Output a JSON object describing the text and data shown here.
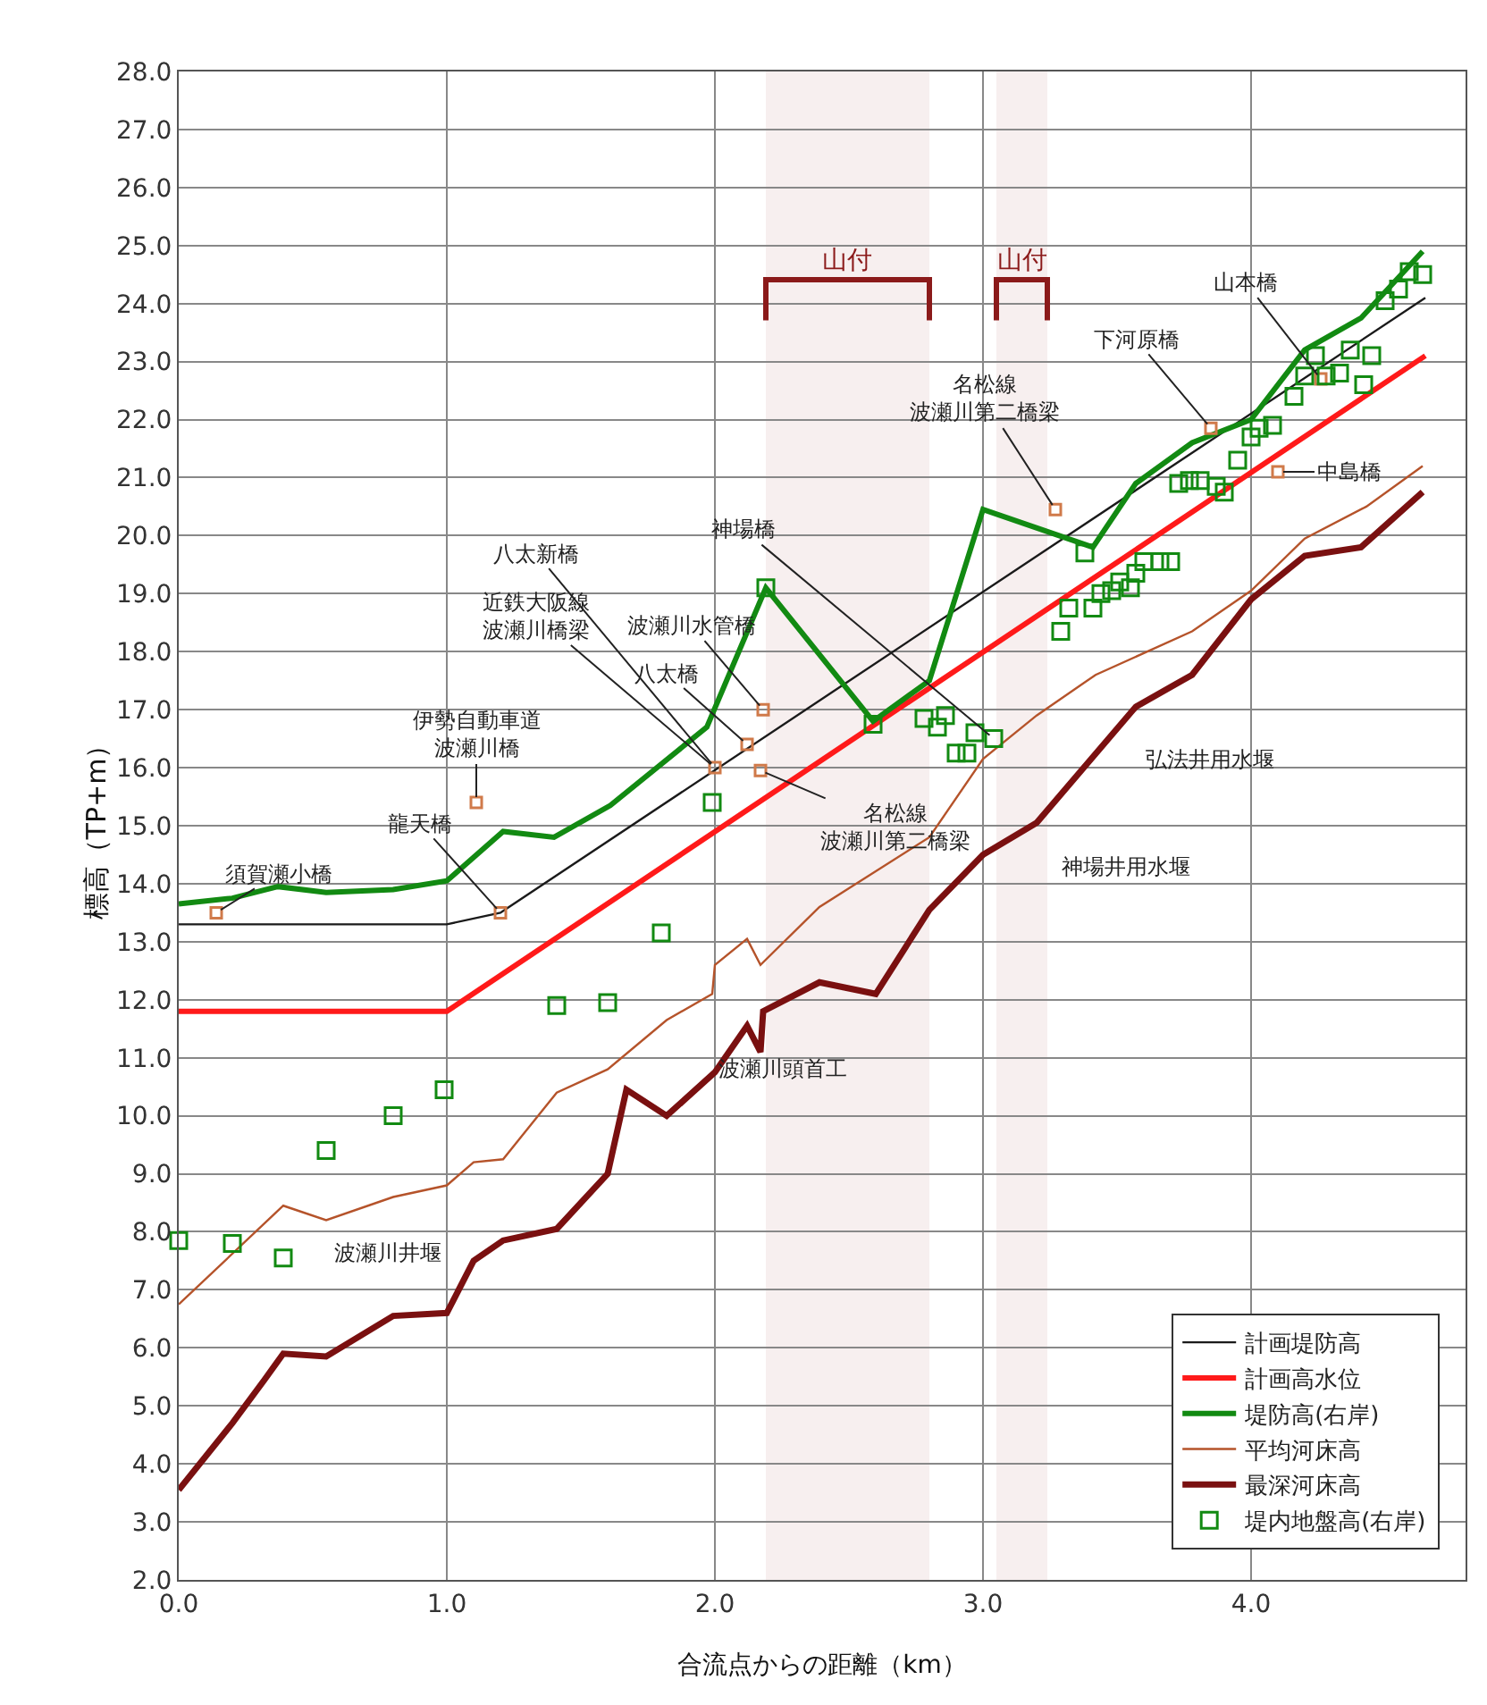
{
  "chart_data": {
    "type": "line",
    "xlabel": "合流点からの距離（km）",
    "ylabel": "標高（TP+m）",
    "xlim": [
      0,
      4.8
    ],
    "xticks": [
      {
        "value": 0,
        "label": "0.0"
      },
      {
        "value": 1,
        "label": "1.0"
      },
      {
        "value": 2,
        "label": "2.0"
      },
      {
        "value": 3,
        "label": "3.0"
      },
      {
        "value": 4,
        "label": "4.0"
      }
    ],
    "ylim": [
      2,
      28
    ],
    "yticks": [
      {
        "value": 2,
        "label": "2.0"
      },
      {
        "value": 3,
        "label": "3.0"
      },
      {
        "value": 4,
        "label": "4.0"
      },
      {
        "value": 5,
        "label": "5.0"
      },
      {
        "value": 6,
        "label": "6.0"
      },
      {
        "value": 7,
        "label": "7.0"
      },
      {
        "value": 8,
        "label": "8.0"
      },
      {
        "value": 9,
        "label": "9.0"
      },
      {
        "value": 10,
        "label": "10.0"
      },
      {
        "value": 11,
        "label": "11.0"
      },
      {
        "value": 12,
        "label": "12.0"
      },
      {
        "value": 13,
        "label": "13.0"
      },
      {
        "value": 14,
        "label": "14.0"
      },
      {
        "value": 15,
        "label": "15.0"
      },
      {
        "value": 16,
        "label": "16.0"
      },
      {
        "value": 17,
        "label": "17.0"
      },
      {
        "value": 18,
        "label": "18.0"
      },
      {
        "value": 19,
        "label": "19.0"
      },
      {
        "value": 20,
        "label": "20.0"
      },
      {
        "value": 21,
        "label": "21.0"
      },
      {
        "value": 22,
        "label": "22.0"
      },
      {
        "value": 23,
        "label": "23.0"
      },
      {
        "value": 24,
        "label": "24.0"
      },
      {
        "value": 25,
        "label": "25.0"
      },
      {
        "value": 26,
        "label": "26.0"
      },
      {
        "value": 27,
        "label": "27.0"
      },
      {
        "value": 28,
        "label": "28.0"
      }
    ],
    "grid": true,
    "legend": "bottom right",
    "line_style": "solid",
    "series": [
      {
        "name": "計画堤防高",
        "type": "line",
        "color": "#1a1a1a",
        "marker": "none",
        "x": [
          0,
          1.0,
          1.2,
          4.65
        ],
        "values": [
          13.3,
          13.3,
          13.5,
          24.1
        ]
      },
      {
        "name": "計画高水位",
        "type": "line",
        "color": "#ff1a1a",
        "marker": "none",
        "x": [
          0,
          1.0,
          4.65
        ],
        "values": [
          11.8,
          11.8,
          23.1
        ]
      },
      {
        "name": "堤防高(右岸)",
        "type": "line",
        "color": "#128a12",
        "marker": "none",
        "x": [
          0,
          0.2,
          0.37,
          0.55,
          0.8,
          1.0,
          1.21,
          1.4,
          1.61,
          1.97,
          2.19,
          2.59,
          2.8,
          3.0,
          3.41,
          3.57,
          3.78,
          4.0,
          4.2,
          4.41,
          4.64
        ],
        "values": [
          13.65,
          13.75,
          13.95,
          13.85,
          13.9,
          14.05,
          14.9,
          14.8,
          15.35,
          16.7,
          19.1,
          16.8,
          17.5,
          20.45,
          19.8,
          20.9,
          21.6,
          22.0,
          23.2,
          23.75,
          24.9
        ]
      },
      {
        "name": "平均河床高",
        "type": "line",
        "color": "#b5532a",
        "marker": "none",
        "x": [
          0,
          0.39,
          0.55,
          0.8,
          1.0,
          1.1,
          1.21,
          1.41,
          1.6,
          1.82,
          1.99,
          2.0,
          2.12,
          2.17,
          2.39,
          2.8,
          3.0,
          3.2,
          3.42,
          3.78,
          4.0,
          4.2,
          4.43,
          4.64
        ],
        "values": [
          6.75,
          8.45,
          8.2,
          8.6,
          8.8,
          9.2,
          9.25,
          10.4,
          10.8,
          11.65,
          12.1,
          12.6,
          13.05,
          12.6,
          13.6,
          14.8,
          16.15,
          16.9,
          17.6,
          18.35,
          19.05,
          19.95,
          20.5,
          21.2
        ]
      },
      {
        "name": "最深河床高",
        "type": "line",
        "color": "#7a1010",
        "marker": "none",
        "x": [
          0,
          0.2,
          0.32,
          0.39,
          0.55,
          0.8,
          1.0,
          1.1,
          1.21,
          1.41,
          1.6,
          1.67,
          1.82,
          2.0,
          2.12,
          2.17,
          2.18,
          2.39,
          2.6,
          2.8,
          3.0,
          3.2,
          3.57,
          3.78,
          4.0,
          4.2,
          4.41,
          4.64
        ],
        "values": [
          3.55,
          4.7,
          5.45,
          5.9,
          5.85,
          6.55,
          6.6,
          7.5,
          7.85,
          8.05,
          9.0,
          10.45,
          10.0,
          10.75,
          11.55,
          11.1,
          11.8,
          12.3,
          12.1,
          13.55,
          14.5,
          15.05,
          17.05,
          17.6,
          18.9,
          19.65,
          19.8,
          20.75
        ]
      },
      {
        "type": "scatter",
        "color": "#d07a4a",
        "marker": "square",
        "x": [
          0.14,
          1.2,
          1.11,
          2.0,
          2.12,
          2.18,
          2.17,
          3.27,
          3.85,
          4.26,
          4.1
        ],
        "values": [
          13.5,
          13.5,
          15.4,
          16.0,
          16.4,
          17.0,
          15.95,
          20.45,
          21.85,
          22.7,
          21.1
        ]
      },
      {
        "name": "堤内地盤高(右岸)",
        "type": "scatter",
        "color": "#128a12",
        "marker": "square",
        "x": [
          0,
          0.2,
          0.39,
          0.55,
          0.8,
          0.99,
          1.41,
          1.6,
          1.8,
          1.99,
          2.19,
          2.59,
          2.78,
          2.83,
          2.86,
          2.9,
          2.94,
          2.97,
          3.04,
          3.29,
          3.32,
          3.38,
          3.41,
          3.44,
          3.48,
          3.51,
          3.55,
          3.57,
          3.6,
          3.66,
          3.7,
          3.73,
          3.77,
          3.81,
          3.87,
          3.9,
          3.95,
          4.0,
          4.03,
          4.08,
          4.16,
          4.2,
          4.24,
          4.28,
          4.33,
          4.37,
          4.42,
          4.45,
          4.5,
          4.55,
          4.59,
          4.64
        ],
        "values": [
          7.85,
          7.8,
          7.55,
          9.4,
          10.0,
          10.45,
          11.9,
          11.95,
          13.15,
          15.4,
          19.1,
          16.75,
          16.85,
          16.7,
          16.9,
          16.25,
          16.25,
          16.6,
          16.5,
          18.35,
          18.75,
          19.7,
          18.75,
          19.0,
          19.05,
          19.2,
          19.1,
          19.35,
          19.55,
          19.55,
          19.55,
          20.9,
          20.95,
          20.95,
          20.85,
          20.75,
          21.3,
          21.7,
          21.85,
          21.9,
          22.4,
          22.75,
          23.1,
          22.75,
          22.8,
          23.2,
          22.6,
          23.1,
          24.05,
          24.25,
          24.55,
          24.5
        ]
      }
    ],
    "bands": [
      {
        "axis": "x",
        "from": 2.19,
        "to": 2.8,
        "label": "山付",
        "color": "#8b1a1a"
      },
      {
        "axis": "x",
        "from": 3.05,
        "to": 3.24,
        "label": "山付",
        "color": "#8b1a1a"
      }
    ],
    "annotations": [
      {
        "text": "須賀瀬小橋",
        "x": 0.14,
        "y": 13.5
      },
      {
        "text": "龍天橋",
        "x": 1.2,
        "y": 13.5
      },
      {
        "text": "伊勢自動車道波瀬川橋",
        "x": 1.11,
        "y": 15.4
      },
      {
        "text": "八太新橋",
        "x": 2.0,
        "y": 16.0
      },
      {
        "text": "近鉄大阪線波瀬川橋梁",
        "x": 2.0,
        "y": 16.0
      },
      {
        "text": "波瀬川水管橋",
        "x": 2.18,
        "y": 17.0
      },
      {
        "text": "八太橋",
        "x": 2.12,
        "y": 16.4
      },
      {
        "text": "名松線波瀬川第二橋梁",
        "x": 2.17,
        "y": 15.95
      },
      {
        "text": "神場橋",
        "x": 3.04,
        "y": 16.5
      },
      {
        "text": "名松線波瀬川第二橋梁",
        "x": 3.27,
        "y": 20.45
      },
      {
        "text": "下河原橋",
        "x": 3.85,
        "y": 21.85
      },
      {
        "text": "山本橋",
        "x": 4.26,
        "y": 22.7
      },
      {
        "text": "中島橋",
        "x": 4.1,
        "y": 21.1
      },
      "波瀬川井堰",
      "波瀬川頭首工",
      "神場井用水堰",
      "弘法井用水堰"
    ]
  }
}
